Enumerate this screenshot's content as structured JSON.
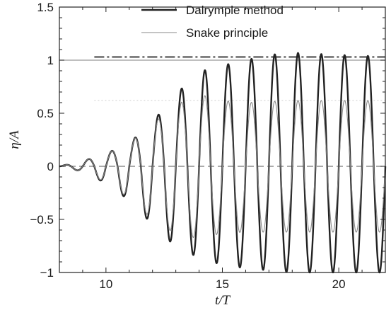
{
  "chart_data": {
    "type": "line",
    "xlabel": "t/T",
    "ylabel": "η/A",
    "xlim": [
      8.0,
      22.0
    ],
    "ylim": [
      -1.0,
      1.5
    ],
    "xticks": [
      10,
      15,
      20
    ],
    "xtick_labels": [
      "10",
      "15",
      "20"
    ],
    "yticks": [
      -1,
      -0.5,
      0,
      0.5,
      1,
      1.5
    ],
    "ytick_labels": [
      "−1",
      "−0.5",
      "0",
      "0.5",
      "1",
      "1.5"
    ],
    "legend_position": "top",
    "grid": false,
    "series": [
      {
        "name": "Dalrymple method",
        "color": "#222222",
        "style": "solid-thick",
        "period": 1.0,
        "phase": 0.25,
        "x": [
          8.0,
          9.0,
          10.0,
          11.0,
          12.0,
          13.0,
          14.0,
          15.0,
          16.0,
          17.0,
          18.0,
          19.0,
          20.0,
          21.0,
          22.0
        ],
        "amp_upper": [
          0.0,
          0.05,
          0.12,
          0.22,
          0.42,
          0.68,
          0.89,
          0.95,
          1.0,
          1.05,
          1.07,
          1.06,
          1.05,
          1.04,
          1.04
        ],
        "amp_lower": [
          0.0,
          -0.05,
          -0.16,
          -0.32,
          -0.55,
          -0.76,
          -0.86,
          -0.93,
          -0.96,
          -0.98,
          -1.0,
          -1.0,
          -1.0,
          -1.0,
          -1.0
        ]
      },
      {
        "name": "Snake principle",
        "color": "#888888",
        "style": "solid-thin",
        "period": 1.0,
        "phase": 0.25,
        "x": [
          8.0,
          9.0,
          10.0,
          11.0,
          12.0,
          13.0,
          14.0,
          15.0,
          16.0,
          17.0,
          18.0,
          19.0,
          20.0,
          21.0,
          22.0
        ],
        "amp_upper": [
          0.0,
          0.05,
          0.12,
          0.22,
          0.4,
          0.58,
          0.68,
          0.62,
          0.6,
          0.61,
          0.62,
          0.62,
          0.62,
          0.62,
          0.62
        ],
        "amp_lower": [
          0.0,
          -0.05,
          -0.15,
          -0.3,
          -0.5,
          -0.64,
          -0.68,
          -0.63,
          -0.62,
          -0.62,
          -0.62,
          -0.62,
          -0.62,
          -0.62,
          -0.62
        ]
      }
    ],
    "reference_lines": [
      {
        "y": 1.03,
        "x_start": 9.5,
        "x_end": 22.0,
        "style": "dash-dot",
        "color": "#222222"
      },
      {
        "y": 1.0,
        "x_start": 8.0,
        "x_end": 22.0,
        "style": "solid-thin",
        "color": "#999999"
      },
      {
        "y": 0.62,
        "x_start": 9.5,
        "x_end": 22.0,
        "style": "dotted",
        "color": "#cccccc"
      },
      {
        "y": 0.0,
        "x_start": 8.0,
        "x_end": 22.0,
        "style": "dashed",
        "color": "#777777"
      }
    ]
  }
}
